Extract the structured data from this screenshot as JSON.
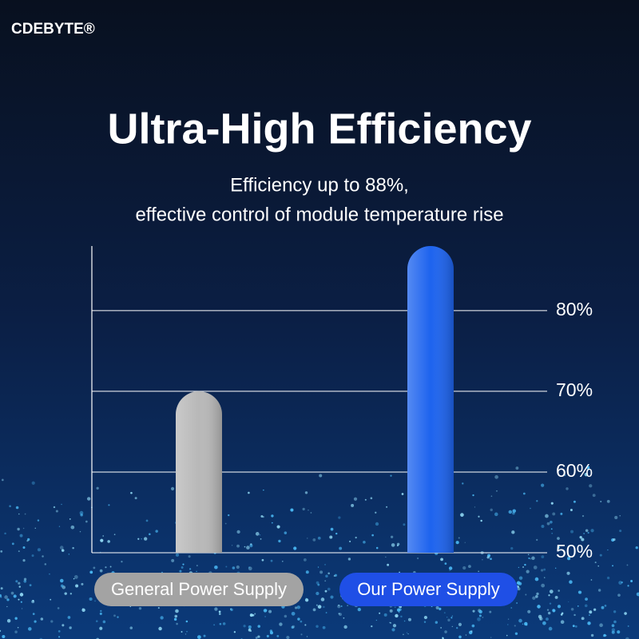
{
  "brand": "CDEBYTE®",
  "chart_data": {
    "type": "bar",
    "title": "Ultra-High Efficiency",
    "subtitle": [
      "Efficiency up to 88%,",
      "effective control of module temperature rise"
    ],
    "categories": [
      "General Power Supply",
      "Our Power Supply"
    ],
    "values": [
      70,
      88
    ],
    "colors": [
      "#b8b8b8",
      "#1d63ee"
    ],
    "ylim": [
      50,
      88
    ],
    "yticks": [
      {
        "value": 50,
        "label": "50%"
      },
      {
        "value": 60,
        "label": "60%"
      },
      {
        "value": 70,
        "label": "70%"
      },
      {
        "value": 80,
        "label": "80%"
      }
    ],
    "grid": true
  }
}
